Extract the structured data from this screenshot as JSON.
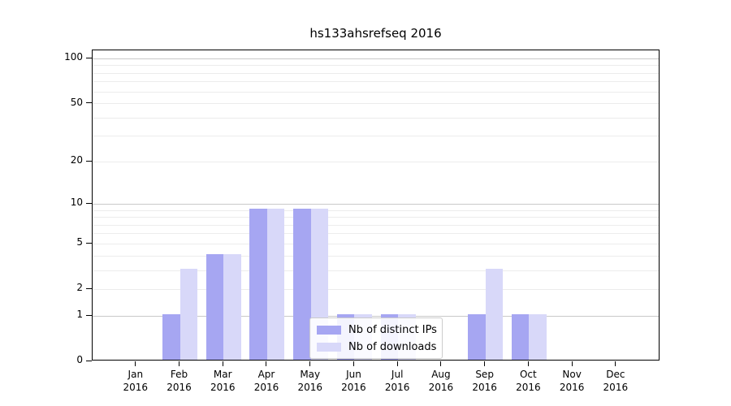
{
  "chart_data": {
    "type": "bar",
    "title": "hs133ahsrefseq 2016",
    "categories": [
      "Jan 2016",
      "Feb 2016",
      "Mar 2016",
      "Apr 2016",
      "May 2016",
      "Jun 2016",
      "Jul 2016",
      "Aug 2016",
      "Sep 2016",
      "Oct 2016",
      "Nov 2016",
      "Dec 2016"
    ],
    "series": [
      {
        "name": "Nb of distinct IPs",
        "color": "#a6a6f2",
        "values": [
          0,
          1,
          4,
          9,
          9,
          1,
          1,
          0,
          1,
          1,
          0,
          0
        ]
      },
      {
        "name": "Nb of downloads",
        "color": "#d8d8f9",
        "values": [
          0,
          3,
          4,
          9,
          9,
          1,
          1,
          0,
          3,
          1,
          0,
          0
        ]
      }
    ],
    "y_axis": {
      "scale": "log1p",
      "tick_values": [
        0,
        1,
        2,
        5,
        10,
        20,
        50,
        100
      ],
      "range": [
        0,
        114
      ]
    },
    "gridlines": {
      "minor": [
        2,
        3,
        4,
        5,
        6,
        7,
        8,
        9,
        20,
        30,
        40,
        50,
        60,
        70,
        80,
        90
      ],
      "major": [
        1,
        10,
        100
      ]
    },
    "legend": {
      "entries": [
        "Nb of distinct IPs",
        "Nb of downloads"
      ],
      "position": "inside-bottom-center"
    },
    "grid": true,
    "xlabel": "",
    "ylabel": ""
  }
}
